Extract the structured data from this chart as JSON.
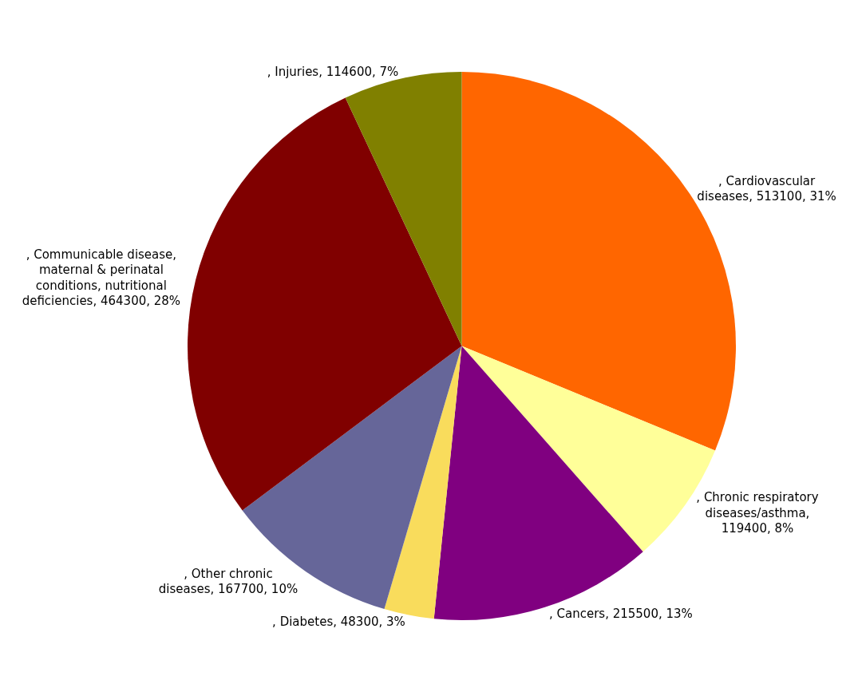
{
  "chart_data": {
    "type": "pie",
    "categories": [
      ", Cardiovascular diseases, 513100, 31%",
      ", Chronic respiratory diseases/asthma, 119400, 8%",
      ", Cancers, 215500, 13%",
      ", Diabetes, 48300, 3%",
      ", Other chronic diseases, 167700, 10%",
      ", Communicable disease, maternal & perinatal conditions, nutritional deficiencies, 464300, 28%",
      ", Injuries, 114600, 7%"
    ],
    "values": [
      513100,
      119400,
      215500,
      48300,
      167700,
      464300,
      114600
    ],
    "colors": [
      "#ff6600",
      "#ffff99",
      "#800080",
      "#f9dc5c",
      "#666699",
      "#800000",
      "#808000"
    ],
    "legend": false
  }
}
